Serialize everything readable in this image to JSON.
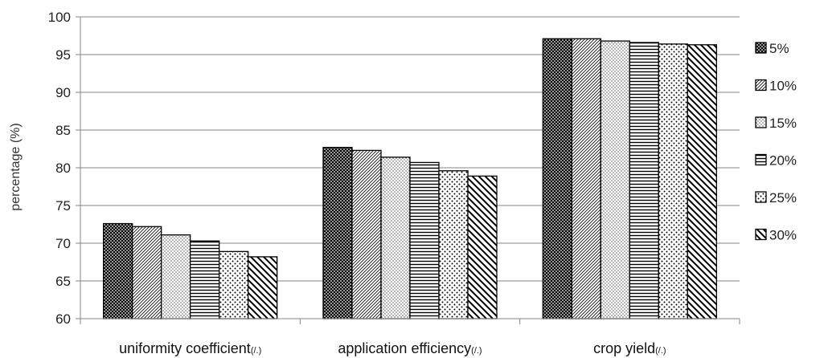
{
  "chart_data": {
    "type": "bar",
    "title": "",
    "xlabel": "",
    "ylabel": "percentage (%)",
    "ylim": [
      60,
      100
    ],
    "yticks": [
      60,
      65,
      70,
      75,
      80,
      85,
      90,
      95,
      100
    ],
    "grid": true,
    "legend_position": "right",
    "categories": [
      {
        "label": "uniformity coefficient",
        "unit": "(/.)"
      },
      {
        "label": "application efficiency",
        "unit": "(/.)"
      },
      {
        "label": "crop yield",
        "unit": "(/.)"
      }
    ],
    "series": [
      {
        "name": "5%",
        "pattern": "crosshatch",
        "values": [
          72.6,
          82.7,
          97.1
        ]
      },
      {
        "name": "10%",
        "pattern": "fine-diagonal",
        "values": [
          72.2,
          82.3,
          97.1
        ]
      },
      {
        "name": "15%",
        "pattern": "dots",
        "values": [
          71.1,
          81.4,
          96.8
        ]
      },
      {
        "name": "20%",
        "pattern": "horizontal",
        "values": [
          70.3,
          80.7,
          96.6
        ]
      },
      {
        "name": "25%",
        "pattern": "dense-dots",
        "values": [
          68.9,
          79.6,
          96.4
        ]
      },
      {
        "name": "30%",
        "pattern": "wide-diagonal",
        "values": [
          68.2,
          78.9,
          96.3
        ]
      }
    ]
  }
}
